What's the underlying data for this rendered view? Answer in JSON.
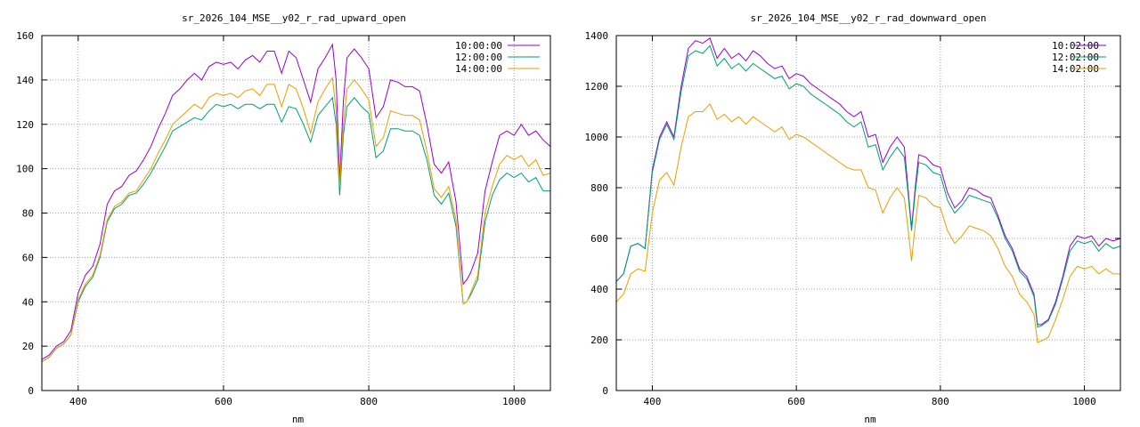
{
  "chart_data": [
    {
      "type": "line",
      "title": "sr_2026_104_MSE__y02_r_rad_upward_open",
      "xlabel": "nm",
      "ylabel": "",
      "xlim": [
        350,
        1050
      ],
      "ylim": [
        0,
        160
      ],
      "xticks": [
        400,
        600,
        800,
        1000
      ],
      "yticks": [
        0,
        20,
        40,
        60,
        80,
        100,
        120,
        140,
        160
      ],
      "grid": true,
      "legend_position": "top-right",
      "series": [
        {
          "name": "10:00:00",
          "color": "#9400d3",
          "x": [
            350,
            360,
            370,
            380,
            390,
            400,
            410,
            420,
            430,
            440,
            450,
            460,
            470,
            480,
            490,
            500,
            510,
            520,
            530,
            540,
            550,
            560,
            570,
            580,
            590,
            600,
            610,
            620,
            630,
            640,
            650,
            660,
            670,
            680,
            690,
            700,
            710,
            720,
            730,
            740,
            750,
            755,
            760,
            765,
            770,
            780,
            790,
            800,
            810,
            820,
            830,
            840,
            850,
            860,
            870,
            880,
            890,
            900,
            910,
            920,
            930,
            935,
            940,
            950,
            960,
            970,
            980,
            990,
            1000,
            1010,
            1020,
            1030,
            1040,
            1050
          ],
          "y": [
            14,
            16,
            20,
            22,
            27,
            44,
            52,
            56,
            66,
            84,
            90,
            92,
            97,
            99,
            104,
            110,
            118,
            125,
            133,
            136,
            140,
            143,
            140,
            146,
            148,
            147,
            148,
            145,
            149,
            151,
            148,
            153,
            153,
            143,
            153,
            150,
            140,
            130,
            145,
            150,
            156,
            140,
            95,
            130,
            150,
            154,
            150,
            145,
            123,
            128,
            140,
            139,
            137,
            137,
            135,
            120,
            102,
            98,
            103,
            85,
            48,
            50,
            53,
            62,
            90,
            103,
            115,
            117,
            115,
            120,
            115,
            117,
            113,
            110
          ]
        },
        {
          "name": "12:00:00",
          "color": "#009e73",
          "x": [
            350,
            360,
            370,
            380,
            390,
            400,
            410,
            420,
            430,
            440,
            450,
            460,
            470,
            480,
            490,
            500,
            510,
            520,
            530,
            540,
            550,
            560,
            570,
            580,
            590,
            600,
            610,
            620,
            630,
            640,
            650,
            660,
            670,
            680,
            690,
            700,
            710,
            720,
            730,
            740,
            750,
            755,
            760,
            765,
            770,
            780,
            790,
            800,
            810,
            820,
            830,
            840,
            850,
            860,
            870,
            880,
            890,
            900,
            910,
            920,
            930,
            935,
            940,
            950,
            960,
            970,
            980,
            990,
            1000,
            1010,
            1020,
            1030,
            1040,
            1050
          ],
          "y": [
            13,
            15,
            19,
            21,
            25,
            40,
            47,
            51,
            60,
            76,
            82,
            84,
            88,
            89,
            93,
            98,
            104,
            110,
            117,
            119,
            121,
            123,
            122,
            126,
            129,
            128,
            129,
            127,
            129,
            129,
            127,
            129,
            129,
            121,
            128,
            127,
            120,
            112,
            124,
            128,
            132,
            120,
            88,
            115,
            128,
            132,
            128,
            125,
            105,
            108,
            118,
            118,
            117,
            117,
            115,
            104,
            88,
            84,
            89,
            74,
            39,
            40,
            43,
            50,
            76,
            88,
            95,
            98,
            96,
            98,
            94,
            96,
            90,
            90
          ]
        },
        {
          "name": "14:00:00",
          "color": "#e69f00",
          "x": [
            350,
            360,
            370,
            380,
            390,
            400,
            410,
            420,
            430,
            440,
            450,
            460,
            470,
            480,
            490,
            500,
            510,
            520,
            530,
            540,
            550,
            560,
            570,
            580,
            590,
            600,
            610,
            620,
            630,
            640,
            650,
            660,
            670,
            680,
            690,
            700,
            710,
            720,
            730,
            740,
            750,
            755,
            760,
            765,
            770,
            780,
            790,
            800,
            810,
            820,
            830,
            840,
            850,
            860,
            870,
            880,
            890,
            900,
            910,
            920,
            930,
            935,
            940,
            950,
            960,
            970,
            980,
            990,
            1000,
            1010,
            1020,
            1030,
            1040,
            1050
          ],
          "y": [
            13,
            15,
            19,
            21,
            25,
            41,
            48,
            52,
            61,
            77,
            83,
            85,
            89,
            90,
            95,
            100,
            107,
            113,
            120,
            123,
            126,
            129,
            127,
            132,
            134,
            133,
            134,
            132,
            135,
            136,
            133,
            138,
            138,
            128,
            138,
            136,
            127,
            116,
            130,
            136,
            141,
            126,
            92,
            120,
            136,
            140,
            136,
            131,
            110,
            114,
            126,
            125,
            124,
            124,
            122,
            108,
            91,
            87,
            92,
            77,
            39,
            40,
            44,
            52,
            80,
            92,
            102,
            106,
            104,
            106,
            101,
            104,
            97,
            98
          ]
        }
      ]
    },
    {
      "type": "line",
      "title": "sr_2026_104_MSE__y02_r_rad_downward_open",
      "xlabel": "nm",
      "ylabel": "",
      "xlim": [
        350,
        1050
      ],
      "ylim": [
        0,
        1400
      ],
      "xticks": [
        400,
        600,
        800,
        1000
      ],
      "yticks": [
        0,
        200,
        400,
        600,
        800,
        1000,
        1200,
        1400
      ],
      "grid": true,
      "legend_position": "top-right",
      "series": [
        {
          "name": "10:02:00",
          "color": "#9400d3",
          "x": [
            350,
            360,
            370,
            380,
            390,
            400,
            410,
            420,
            430,
            440,
            450,
            460,
            470,
            480,
            490,
            500,
            510,
            520,
            530,
            540,
            550,
            560,
            570,
            580,
            590,
            600,
            610,
            620,
            630,
            640,
            650,
            660,
            670,
            680,
            690,
            700,
            710,
            720,
            730,
            740,
            750,
            755,
            760,
            765,
            770,
            780,
            790,
            800,
            810,
            820,
            830,
            840,
            850,
            860,
            870,
            880,
            890,
            900,
            910,
            920,
            930,
            935,
            940,
            950,
            960,
            970,
            980,
            990,
            1000,
            1010,
            1020,
            1030,
            1040,
            1050
          ],
          "y": [
            430,
            460,
            570,
            580,
            560,
            870,
            1000,
            1060,
            1000,
            1200,
            1350,
            1380,
            1370,
            1390,
            1310,
            1350,
            1310,
            1330,
            1300,
            1340,
            1320,
            1290,
            1270,
            1280,
            1230,
            1250,
            1240,
            1210,
            1190,
            1170,
            1150,
            1130,
            1100,
            1080,
            1100,
            1000,
            1010,
            900,
            960,
            1000,
            960,
            800,
            640,
            800,
            930,
            920,
            890,
            880,
            780,
            720,
            750,
            800,
            790,
            770,
            760,
            690,
            610,
            560,
            480,
            450,
            380,
            260,
            260,
            280,
            350,
            450,
            570,
            610,
            600,
            610,
            570,
            600,
            590,
            600
          ]
        },
        {
          "name": "12:02:00",
          "color": "#009e73",
          "x": [
            350,
            360,
            370,
            380,
            390,
            400,
            410,
            420,
            430,
            440,
            450,
            460,
            470,
            480,
            490,
            500,
            510,
            520,
            530,
            540,
            550,
            560,
            570,
            580,
            590,
            600,
            610,
            620,
            630,
            640,
            650,
            660,
            670,
            680,
            690,
            700,
            710,
            720,
            730,
            740,
            750,
            755,
            760,
            765,
            770,
            780,
            790,
            800,
            810,
            820,
            830,
            840,
            850,
            860,
            870,
            880,
            890,
            900,
            910,
            920,
            930,
            935,
            940,
            950,
            960,
            970,
            980,
            990,
            1000,
            1010,
            1020,
            1030,
            1040,
            1050
          ],
          "y": [
            430,
            460,
            570,
            580,
            560,
            860,
            990,
            1050,
            990,
            1180,
            1320,
            1340,
            1330,
            1360,
            1280,
            1310,
            1270,
            1290,
            1260,
            1290,
            1270,
            1250,
            1230,
            1240,
            1190,
            1210,
            1200,
            1170,
            1150,
            1130,
            1110,
            1090,
            1060,
            1040,
            1060,
            960,
            970,
            870,
            920,
            960,
            920,
            780,
            630,
            780,
            900,
            890,
            860,
            850,
            750,
            700,
            730,
            770,
            760,
            750,
            740,
            680,
            600,
            550,
            470,
            440,
            370,
            250,
            255,
            275,
            340,
            440,
            550,
            590,
            580,
            590,
            550,
            580,
            560,
            570
          ]
        },
        {
          "name": "14:02:00",
          "color": "#e69f00",
          "x": [
            350,
            360,
            370,
            380,
            390,
            400,
            410,
            420,
            430,
            440,
            450,
            460,
            470,
            480,
            490,
            500,
            510,
            520,
            530,
            540,
            550,
            560,
            570,
            580,
            590,
            600,
            610,
            620,
            630,
            640,
            650,
            660,
            670,
            680,
            690,
            700,
            710,
            720,
            730,
            740,
            750,
            755,
            760,
            765,
            770,
            780,
            790,
            800,
            810,
            820,
            830,
            840,
            850,
            860,
            870,
            880,
            890,
            900,
            910,
            920,
            930,
            935,
            940,
            950,
            960,
            970,
            980,
            990,
            1000,
            1010,
            1020,
            1030,
            1040,
            1050
          ],
          "y": [
            350,
            380,
            460,
            480,
            470,
            700,
            830,
            860,
            810,
            960,
            1080,
            1100,
            1100,
            1130,
            1070,
            1090,
            1060,
            1080,
            1050,
            1080,
            1060,
            1040,
            1020,
            1040,
            990,
            1010,
            1000,
            980,
            960,
            940,
            920,
            900,
            880,
            870,
            870,
            800,
            790,
            700,
            760,
            800,
            760,
            640,
            510,
            650,
            770,
            760,
            730,
            720,
            630,
            580,
            610,
            650,
            640,
            630,
            610,
            560,
            490,
            450,
            380,
            350,
            300,
            190,
            195,
            210,
            280,
            360,
            450,
            490,
            480,
            490,
            460,
            480,
            460,
            460
          ]
        }
      ]
    }
  ]
}
